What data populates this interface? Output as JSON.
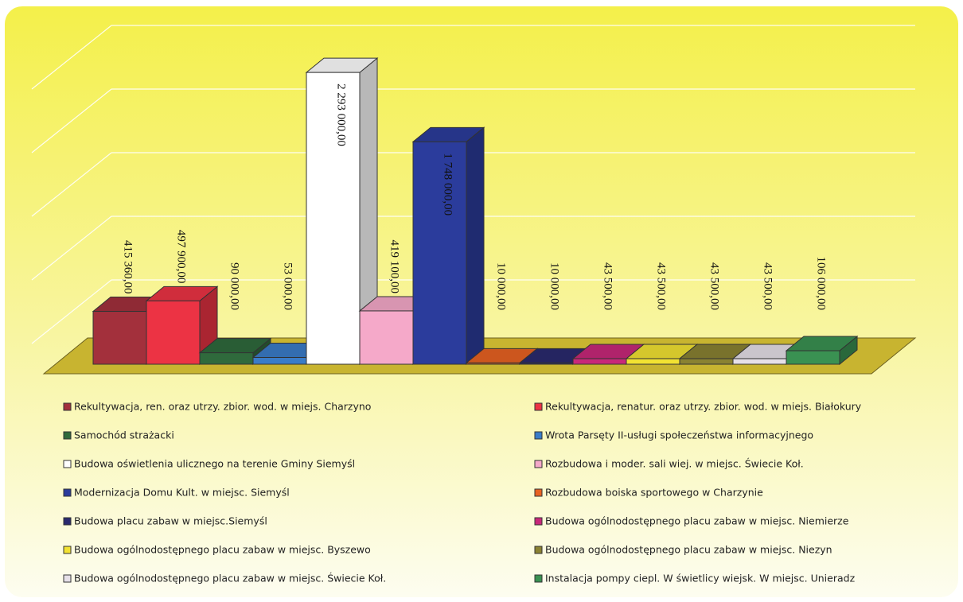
{
  "chart_data": {
    "type": "bar3d",
    "categories": [
      "Rekultywacja, ren. oraz utrzy. zbior. wod. w miejs. Charzyno",
      "Rekultywacja, renatur. oraz utrzy. zbior. wod. w miejs. Białokury",
      "Samochód strażacki",
      "Wrota Parsęty II-usługi społeczeństwa informacyjnego",
      "Budowa oświetlenia ulicznego na terenie Gminy Siemyśl",
      "Rozbudowa i moder. sali wiej. w miejsc. Świecie Koł.",
      "Modernizacja Domu Kult. w miejsc. Siemyśl",
      "Rozbudowa boiska sportowego w Charzynie",
      "Budowa placu zabaw w miejsc.Siemyśl",
      "Budowa ogólnodostępnego placu zabaw w miejsc. Niemierze",
      "Budowa ogólnodostępnego placu zabaw w miejsc. Byszewo",
      "Budowa ogólnodostępnego placu zabaw w miejsc. Niezyn",
      "Budowa ogólnodostępnego placu zabaw w miejsc. Świecie Koł.",
      "Instalacja pompy ciepl. W świetlicy wiejsk. W miejsc. Unieradz"
    ],
    "values": [
      415360,
      497900,
      90000,
      53000,
      2293000,
      419100,
      1748000,
      10000,
      10000,
      43500,
      43500,
      43500,
      43500,
      106000
    ],
    "value_labels": [
      "415 360,00",
      "497 900,00",
      "90 000,00",
      "53 000,00",
      "2 293 000,00",
      "419 100,00",
      "1 748 000,00",
      "10 000,00",
      "10 000,00",
      "43 500,00",
      "43 500,00",
      "43 500,00",
      "43 500,00",
      "106 000,00"
    ],
    "colors": [
      "#a3303c",
      "#ec3344",
      "#2f6a3c",
      "#3a7cc8",
      "#ffffff",
      "#f5a9c9",
      "#2b3c9c",
      "#e86222",
      "#2a2a6e",
      "#c8287a",
      "#f2e232",
      "#8a8232",
      "#e6e0e8",
      "#3a9152"
    ],
    "ylim": [
      0,
      2500000
    ],
    "yticks": [
      0,
      500000,
      1000000,
      1500000,
      2000000,
      2500000
    ],
    "grid": true
  }
}
